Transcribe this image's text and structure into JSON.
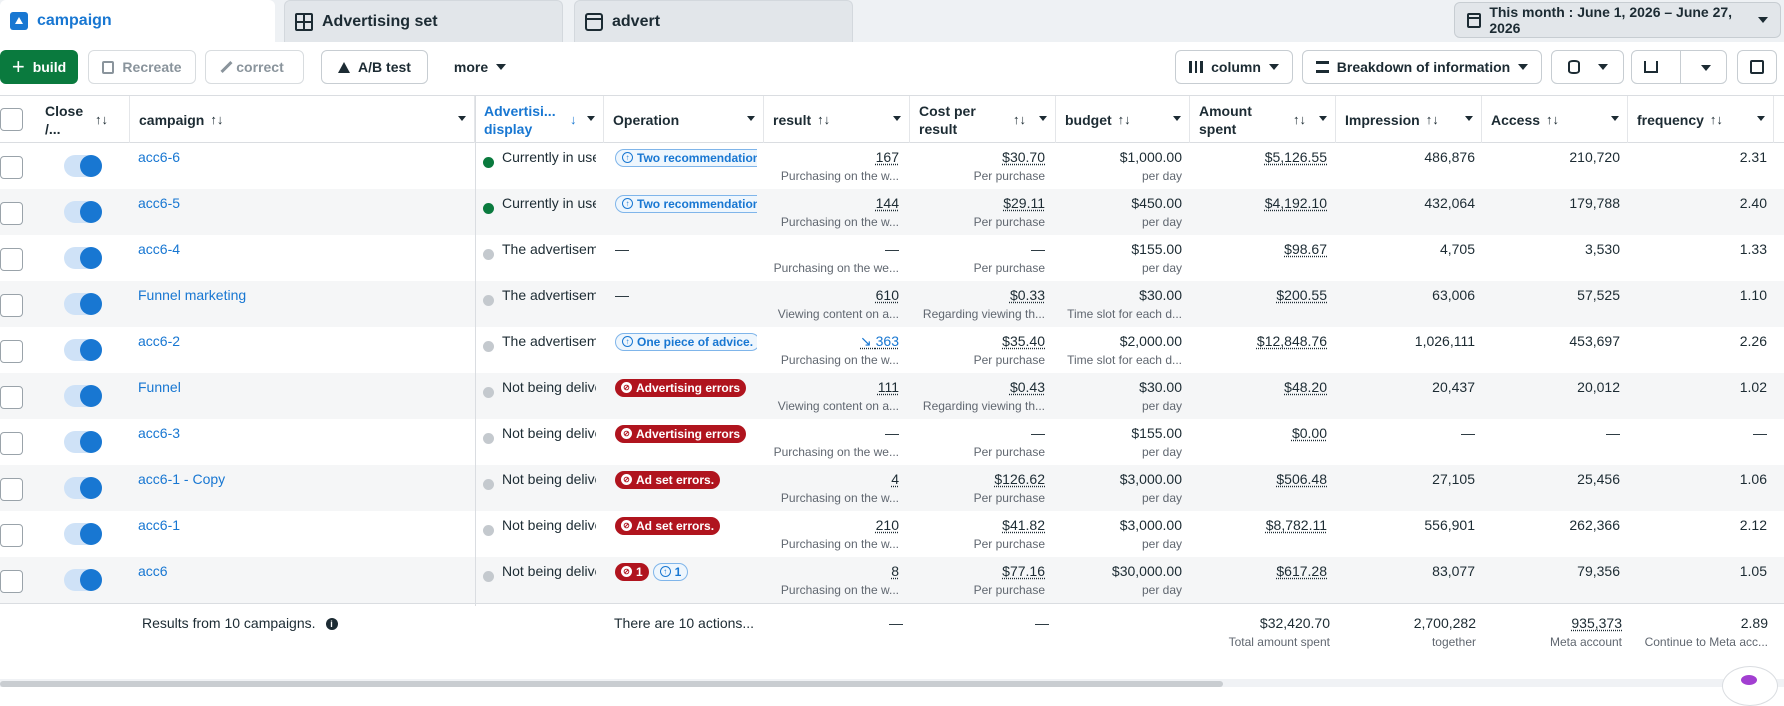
{
  "tabs": [
    {
      "label": "campaign",
      "icon": "folder-icon"
    },
    {
      "label": "Advertising set",
      "icon": "grid-icon"
    },
    {
      "label": "advert",
      "icon": "ad-icon"
    }
  ],
  "date_range": "This month : June 1, 2026 – June 27, 2026",
  "toolbar": {
    "build": "build",
    "recreate": "Recreate",
    "correct": "correct",
    "ab_test": "A/B test",
    "more": "more",
    "column": "column",
    "breakdown": "Breakdown of information"
  },
  "columns": {
    "close": "Close /...",
    "campaign": "campaign",
    "ad_display": "Advertisi... display",
    "operation": "Operation",
    "result": "result",
    "cost": "Cost per result",
    "budget": "budget",
    "amount": "Amount spent",
    "impression": "Impression",
    "access": "Access",
    "frequency": "frequency"
  },
  "rows": [
    {
      "name": "acc6-6",
      "status": "active",
      "delivery": "Currently in use",
      "op_type": "rec",
      "op": "Two recommendations",
      "result": "167",
      "result_sub": "Purchasing on the w...",
      "cost": "$30.70",
      "cost_sub": "Per purchase",
      "budget": "$1,000.00",
      "budget_sub": "per day",
      "amount": "$5,126.55",
      "impression": "486,876",
      "access": "210,720",
      "frequency": "2.31"
    },
    {
      "name": "acc6-5",
      "status": "active",
      "delivery": "Currently in use",
      "op_type": "rec",
      "op": "Two recommendations",
      "result": "144",
      "result_sub": "Purchasing on the w...",
      "cost": "$29.11",
      "cost_sub": "Per purchase",
      "budget": "$450.00",
      "budget_sub": "per day",
      "amount": "$4,192.10",
      "impression": "432,064",
      "access": "179,788",
      "frequency": "2.40"
    },
    {
      "name": "acc6-4",
      "status": "inactive",
      "delivery": "The advertisement",
      "op_type": "dash",
      "op": "—",
      "result": "—",
      "result_sub": "Purchasing on the we...",
      "cost": "—",
      "cost_sub": "Per purchase",
      "budget": "$155.00",
      "budget_sub": "per day",
      "amount": "$98.67",
      "impression": "4,705",
      "access": "3,530",
      "frequency": "1.33"
    },
    {
      "name": "Funnel marketing",
      "status": "inactive",
      "delivery": "The advertisement",
      "op_type": "dash",
      "op": "—",
      "result": "610",
      "result_sub": "Viewing content on a...",
      "cost": "$0.33",
      "cost_sub": "Regarding viewing th...",
      "budget": "$30.00",
      "budget_sub": "Time slot for each d...",
      "amount": "$200.55",
      "impression": "63,006",
      "access": "57,525",
      "frequency": "1.10"
    },
    {
      "name": "acc6-2",
      "status": "inactive",
      "delivery": "The advertisement",
      "op_type": "rec",
      "op": "One piece of advice.",
      "result": "363",
      "result_trend": true,
      "result_sub": "Purchasing on the w...",
      "cost": "$35.40",
      "cost_sub": "Per purchase",
      "budget": "$2,000.00",
      "budget_sub": "Time slot for each d...",
      "amount": "$12,848.76",
      "impression": "1,026,111",
      "access": "453,697",
      "frequency": "2.26"
    },
    {
      "name": "Funnel",
      "status": "inactive",
      "delivery": "Not being delivered",
      "op_type": "err",
      "op": "Advertising errors",
      "result": "111",
      "result_sub": "Viewing content on a...",
      "cost": "$0.43",
      "cost_sub": "Regarding viewing th...",
      "budget": "$30.00",
      "budget_sub": "per day",
      "amount": "$48.20",
      "impression": "20,437",
      "access": "20,012",
      "frequency": "1.02"
    },
    {
      "name": "acc6-3",
      "status": "inactive",
      "delivery": "Not being delivered",
      "op_type": "err",
      "op": "Advertising errors",
      "result": "—",
      "result_sub": "Purchasing on the we...",
      "cost": "—",
      "cost_sub": "Per purchase",
      "budget": "$155.00",
      "budget_sub": "per day",
      "amount": "$0.00",
      "impression": "—",
      "access": "—",
      "frequency": "—"
    },
    {
      "name": "acc6-1 - Copy",
      "status": "inactive",
      "delivery": "Not being delivered",
      "op_type": "err",
      "op": "Ad set errors.",
      "result": "4",
      "result_sub": "Purchasing on the w...",
      "cost": "$126.62",
      "cost_sub": "Per purchase",
      "budget": "$3,000.00",
      "budget_sub": "per day",
      "amount": "$506.48",
      "impression": "27,105",
      "access": "25,456",
      "frequency": "1.06"
    },
    {
      "name": "acc6-1",
      "status": "inactive",
      "delivery": "Not being delivered",
      "op_type": "err",
      "op": "Ad set errors.",
      "result": "210",
      "result_sub": "Purchasing on the w...",
      "cost": "$41.82",
      "cost_sub": "Per purchase",
      "budget": "$3,000.00",
      "budget_sub": "per day",
      "amount": "$8,782.11",
      "impression": "556,901",
      "access": "262,366",
      "frequency": "2.12"
    },
    {
      "name": "acc6",
      "status": "inactive",
      "delivery": "Not being delivered",
      "op_type": "mixed",
      "op_err": "1",
      "op_rec": "1",
      "result": "8",
      "result_sub": "Purchasing on the w...",
      "cost": "$77.16",
      "cost_sub": "Per purchase",
      "budget": "$30,000.00",
      "budget_sub": "per day",
      "amount": "$617.28",
      "impression": "83,077",
      "access": "79,356",
      "frequency": "1.05"
    }
  ],
  "footer": {
    "results": "Results from 10 campaigns.",
    "actions": "There are 10 actions...",
    "result": "—",
    "cost": "—",
    "amount": "$32,420.70",
    "amount_sub": "Total amount spent",
    "impression": "2,700,282",
    "impression_sub": "together",
    "access": "935,373",
    "access_sub": "Meta account",
    "frequency": "2.89",
    "frequency_sub": "Continue to Meta acc..."
  },
  "colors": {
    "accent": "#1877d2",
    "build_green": "#0a7a3e",
    "error_red": "#b0141e",
    "active_dot": "#0a7a3e",
    "inactive_dot": "#c4c9ce"
  }
}
